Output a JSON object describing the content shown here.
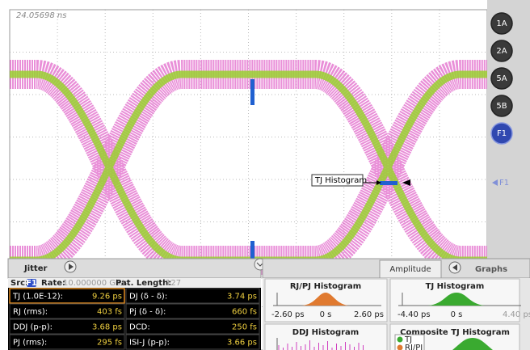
{
  "timestamp": "24.05698 ns",
  "channels": [
    "1A",
    "2A",
    "5A",
    "5B",
    "F1"
  ],
  "marker": "F1",
  "annotation": "TJ Histogram",
  "jitter_panel": {
    "tab": "Jitter",
    "src_label": "Src:",
    "src": "F1",
    "rate_label": "Rate:",
    "rate": "10.000000 Gb/s",
    "pattern_label": "Pat. Length:",
    "pattern": "127",
    "rows": [
      [
        [
          "TJ (1.0E-12):",
          "9.26 ps"
        ],
        [
          "DJ (δ - δ):",
          "3.74 ps"
        ]
      ],
      [
        [
          "RJ (rms):",
          "403 fs"
        ],
        [
          "Pj (δ - δ):",
          "660 fs"
        ]
      ],
      [
        [
          "DDJ (p-p):",
          "3.68 ps"
        ],
        [
          "DCD:",
          "250 fs"
        ]
      ],
      [
        [
          "PJ (rms):",
          "295 fs"
        ],
        [
          "ISI-J (p-p):",
          "3.66 ps"
        ]
      ]
    ]
  },
  "graphs_panel": {
    "tabs": [
      "Amplitude",
      "Graphs"
    ],
    "plots": [
      {
        "title": "RJ/PJ Histogram",
        "axis": [
          "-2.60 ps",
          "0 s",
          "2.60 ps"
        ]
      },
      {
        "title": "TJ Histogram",
        "axis": [
          "-4.40 ps",
          "0 s",
          "4.40 ps"
        ]
      },
      {
        "title": "DDJ Histogram"
      },
      {
        "title": "Composite TJ Histogram",
        "legend": [
          "TJ",
          "RJ/PJ"
        ]
      }
    ]
  }
}
